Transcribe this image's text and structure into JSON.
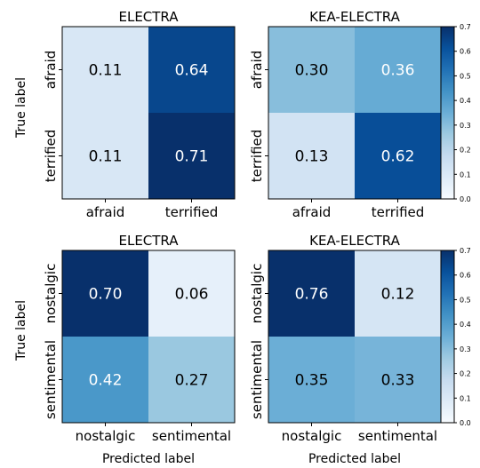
{
  "figure": {
    "ylabel": "True label",
    "xlabel": "Predicted label",
    "colormap": [
      "#f7fbff",
      "#deebf7",
      "#c6dbef",
      "#9ecae1",
      "#6baed6",
      "#4292c6",
      "#2171b5",
      "#08519c",
      "#08306b"
    ]
  },
  "chart_data": [
    {
      "type": "heatmap",
      "title": "ELECTRA",
      "row_labels": [
        "afraid",
        "terrified"
      ],
      "col_labels": [
        "afraid",
        "terrified"
      ],
      "values": [
        [
          0.11,
          0.64
        ],
        [
          0.11,
          0.71
        ]
      ],
      "display": [
        [
          "0.11",
          "0.64"
        ],
        [
          "0.11",
          "0.71"
        ]
      ],
      "vmin": 0.0,
      "vmax": 0.7,
      "colorbar": false
    },
    {
      "type": "heatmap",
      "title": "KEA-ELECTRA",
      "row_labels": [
        "afraid",
        "terrified"
      ],
      "col_labels": [
        "afraid",
        "terrified"
      ],
      "values": [
        [
          0.3,
          0.36
        ],
        [
          0.13,
          0.62
        ]
      ],
      "display": [
        [
          "0.30",
          "0.36"
        ],
        [
          "0.13",
          "0.62"
        ]
      ],
      "vmin": 0.0,
      "vmax": 0.7,
      "colorbar": true,
      "colorbar_ticks": [
        "0.0",
        "0.1",
        "0.2",
        "0.3",
        "0.4",
        "0.5",
        "0.6",
        "0.7"
      ]
    },
    {
      "type": "heatmap",
      "title": "ELECTRA",
      "row_labels": [
        "nostalgic",
        "sentimental"
      ],
      "col_labels": [
        "nostalgic",
        "sentimental"
      ],
      "values": [
        [
          0.7,
          0.06
        ],
        [
          0.42,
          0.27
        ]
      ],
      "display": [
        [
          "0.70",
          "0.06"
        ],
        [
          "0.42",
          "0.27"
        ]
      ],
      "vmin": 0.0,
      "vmax": 0.7,
      "colorbar": false
    },
    {
      "type": "heatmap",
      "title": "KEA-ELECTRA",
      "row_labels": [
        "nostalgic",
        "sentimental"
      ],
      "col_labels": [
        "nostalgic",
        "sentimental"
      ],
      "values": [
        [
          0.76,
          0.12
        ],
        [
          0.35,
          0.33
        ]
      ],
      "display": [
        [
          "0.76",
          "0.12"
        ],
        [
          "0.35",
          "0.33"
        ]
      ],
      "vmin": 0.0,
      "vmax": 0.7,
      "colorbar": true,
      "colorbar_ticks": [
        "0.0",
        "0.1",
        "0.2",
        "0.3",
        "0.4",
        "0.5",
        "0.6",
        "0.7"
      ]
    }
  ]
}
